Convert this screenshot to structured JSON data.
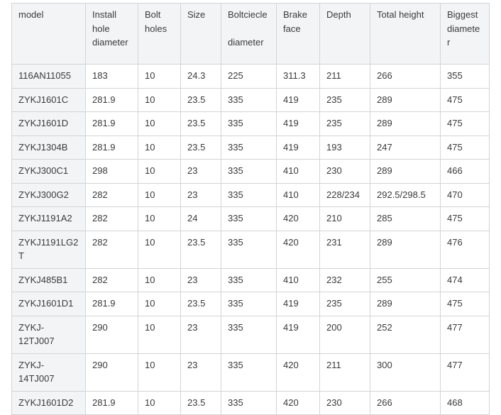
{
  "table": {
    "headers": [
      "model",
      "Install hole diameter",
      "Bolt holes",
      "Size",
      "Boltciecle\n\ndiameter",
      "Brake face",
      "Depth",
      "Total height",
      "Biggest diameter"
    ],
    "rows": [
      [
        "116AN11055",
        "183",
        "10",
        "24.3",
        "225",
        "311.3",
        "211",
        "266",
        "355"
      ],
      [
        "ZYKJ1601C",
        "281.9",
        "10",
        "23.5",
        "335",
        "419",
        "235",
        "289",
        "475"
      ],
      [
        "ZYKJ1601D",
        "281.9",
        "10",
        "23.5",
        "335",
        "419",
        "235",
        "289",
        "475"
      ],
      [
        "ZYKJ1304B",
        "281.9",
        "10",
        "23.5",
        "335",
        "419",
        "193",
        "247",
        "475"
      ],
      [
        "ZYKJ300C1",
        "298",
        "10",
        "23",
        "335",
        "410",
        "230",
        "289",
        "466"
      ],
      [
        "ZYKJ300G2",
        "282",
        "10",
        "23",
        "335",
        "410",
        "228/234",
        "292.5/298.5",
        "470"
      ],
      [
        "ZYKJ1191A2",
        "282",
        "10",
        "24",
        "335",
        "420",
        "210",
        "285",
        "475"
      ],
      [
        "ZYKJ1191LG2T",
        "282",
        "10",
        "23.5",
        "335",
        "420",
        "231",
        "289",
        "476"
      ],
      [
        "ZYKJ485B1",
        "282",
        "10",
        "23",
        "335",
        "410",
        "232",
        "255",
        "474"
      ],
      [
        "ZYKJ1601D1",
        "281.9",
        "10",
        "23.5",
        "335",
        "419",
        "235",
        "289",
        "475"
      ],
      [
        "ZYKJ-12TJ007",
        "290",
        "10",
        "23",
        "335",
        "419",
        "200",
        "252",
        "477"
      ],
      [
        "ZYKJ-14TJ007",
        "290",
        "10",
        "23",
        "335",
        "420",
        "211",
        "300",
        "477"
      ],
      [
        "ZYKJ1601D2",
        "281.9",
        "10",
        "23.5",
        "335",
        "420",
        "230",
        "266",
        "468"
      ]
    ]
  }
}
